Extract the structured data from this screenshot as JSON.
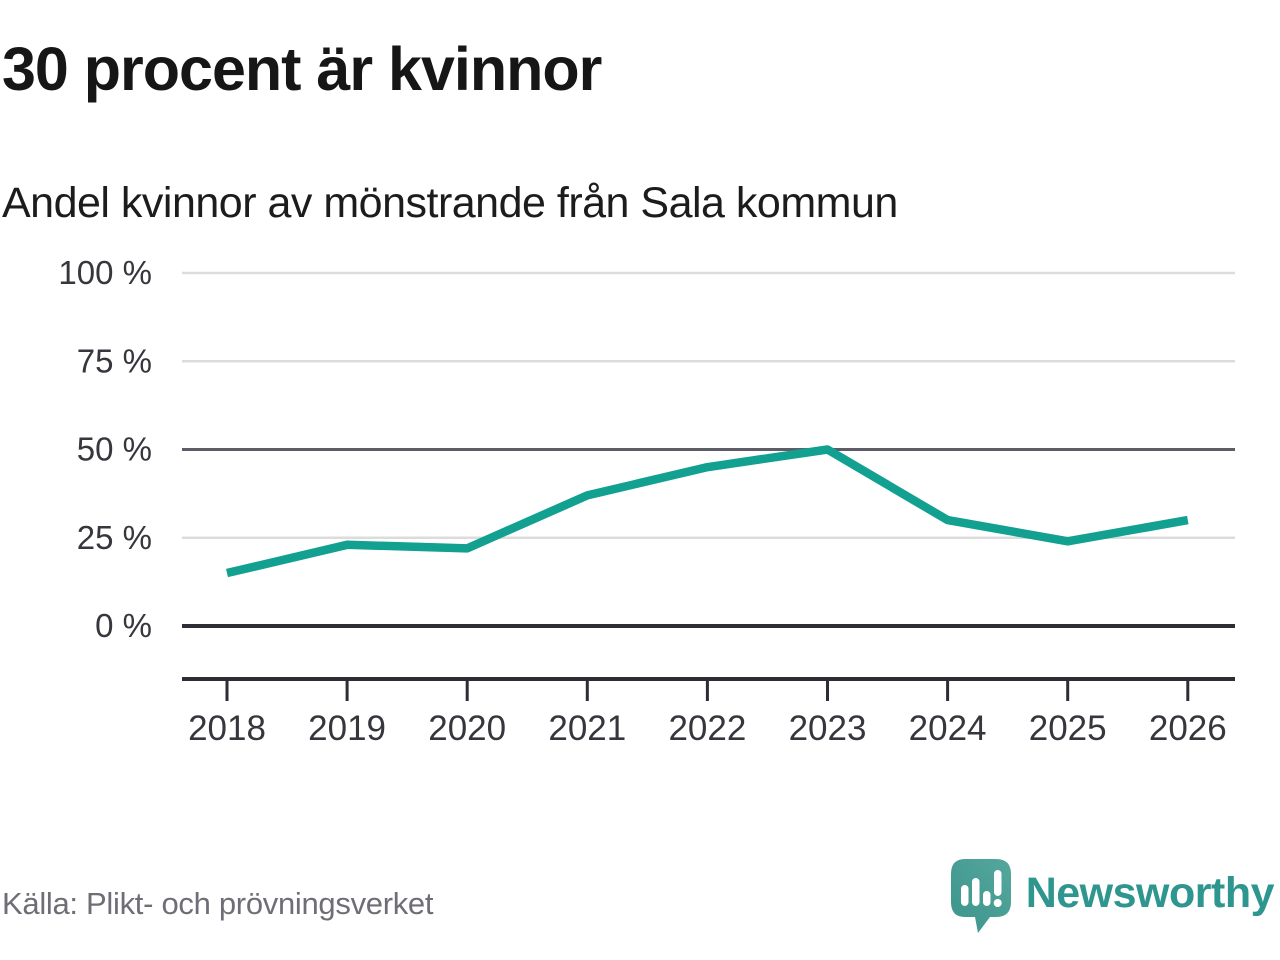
{
  "title": "30 procent är kvinnor",
  "subtitle": "Andel kvinnor av mönstrande från Sala kommun",
  "source": "Källa: Plikt- och prövningsverket",
  "brand": {
    "name": "Newsworthy",
    "icon": "newsworthy-bubble-barchart-icon",
    "color": "#2e968e",
    "icon_color_top": "#55a79d",
    "icon_color_bottom": "#3b948b"
  },
  "colors": {
    "line": "#12a090",
    "grid_light": "#dcdcdc",
    "grid_mid": "#5d5d68",
    "grid_dark": "#2d2d35",
    "axis_text": "#36363d"
  },
  "chart_data": {
    "type": "line",
    "title": "30 procent är kvinnor",
    "subtitle": "Andel kvinnor av mönstrande från Sala kommun",
    "x": [
      2018,
      2019,
      2020,
      2021,
      2022,
      2023,
      2024,
      2025,
      2026
    ],
    "series": [
      {
        "name": "Andel kvinnor av mönstrande från Sala kommun",
        "values": [
          15,
          23,
          22,
          37,
          45,
          50,
          30,
          24,
          30
        ]
      }
    ],
    "unit": "%",
    "xlabel": "",
    "ylabel": "",
    "ylim": [
      0,
      100
    ],
    "y_ticks": [
      {
        "value": 0,
        "label": "0 %"
      },
      {
        "value": 25,
        "label": "25 %"
      },
      {
        "value": 50,
        "label": "50 %"
      },
      {
        "value": 75,
        "label": "75 %"
      },
      {
        "value": 100,
        "label": "100 %"
      }
    ],
    "grid": "horizontal",
    "legend": "none",
    "line_color": "#12a090"
  }
}
